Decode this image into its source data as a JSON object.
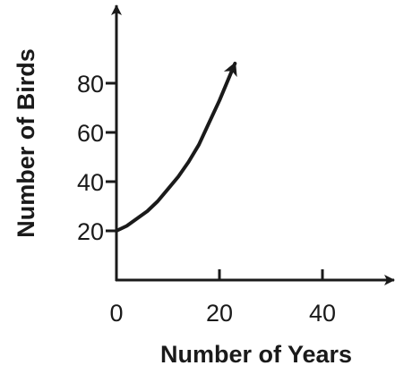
{
  "chart_data": {
    "type": "line",
    "title": "",
    "xlabel": "Number of Years",
    "ylabel": "Number of Birds",
    "xlim": [
      0,
      55
    ],
    "ylim": [
      0,
      105
    ],
    "x_ticks": [
      {
        "value": 0,
        "label": "0"
      },
      {
        "value": 20,
        "label": "20"
      },
      {
        "value": 40,
        "label": "40"
      }
    ],
    "y_ticks": [
      {
        "value": 20,
        "label": "20"
      },
      {
        "value": 40,
        "label": "40"
      },
      {
        "value": 60,
        "label": "60"
      },
      {
        "value": 80,
        "label": "80"
      }
    ],
    "grid": false,
    "series": [
      {
        "x": [
          0,
          2,
          4,
          6,
          8,
          10,
          12,
          14,
          16,
          18,
          20,
          22,
          23
        ],
        "y": [
          20,
          22,
          25,
          28,
          32,
          37,
          42,
          48,
          55,
          64,
          73,
          83,
          88
        ],
        "end_arrow": true
      }
    ]
  }
}
